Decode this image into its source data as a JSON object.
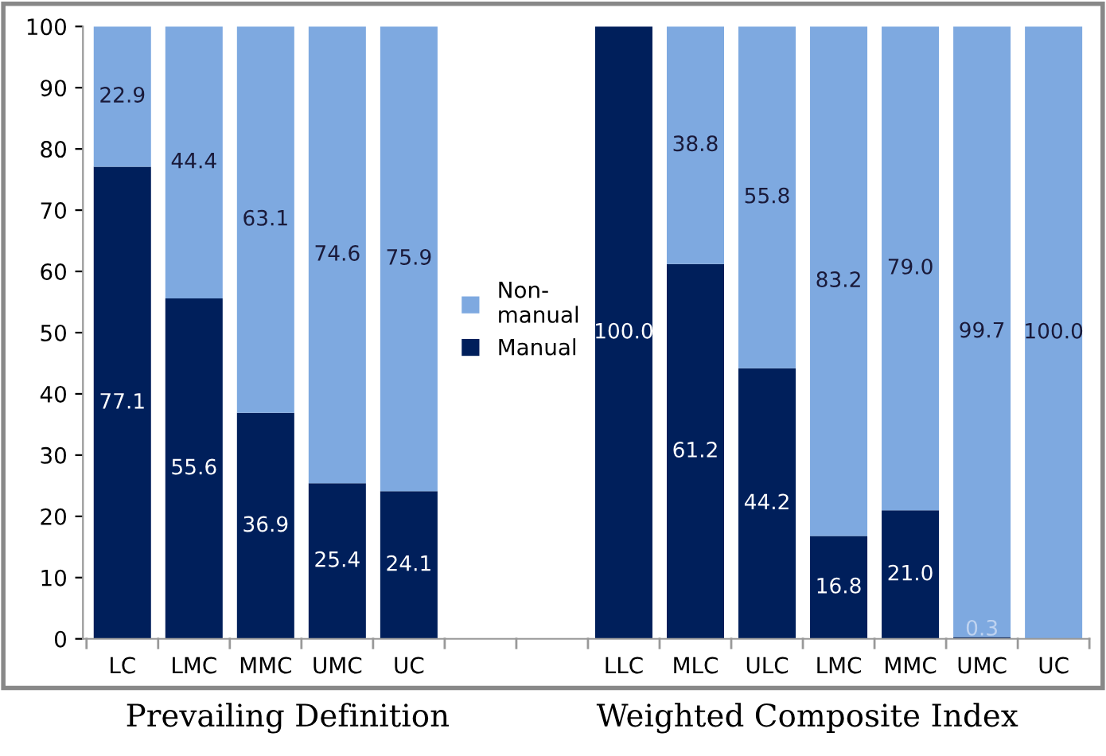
{
  "chart_data": {
    "type": "bar",
    "stacked": true,
    "categories": [
      "LC",
      "LMC",
      "MMC",
      "UMC",
      "UC",
      null,
      null,
      "LLC",
      "MLC",
      "ULC",
      "LMC",
      "MMC",
      "UMC",
      "UC"
    ],
    "series": [
      {
        "name": "Manual",
        "color": "#001f5b",
        "values": [
          77.1,
          55.6,
          36.9,
          25.4,
          24.1,
          null,
          null,
          100.0,
          61.2,
          44.2,
          16.8,
          21.0,
          0.3,
          0
        ],
        "value_labels": [
          "77.1",
          "55.6",
          "36.9",
          "25.4",
          "24.1",
          null,
          null,
          "100.0",
          "61.2",
          "44.2",
          "16.8",
          "21.0",
          "0.3",
          null
        ]
      },
      {
        "name": "Non-\nmanual",
        "color": "#7ea9e0",
        "values": [
          22.9,
          44.4,
          63.1,
          74.6,
          75.9,
          null,
          null,
          0,
          38.8,
          55.8,
          83.2,
          79.0,
          99.7,
          100.0
        ],
        "value_labels": [
          "22.9",
          "44.4",
          "63.1",
          "74.6",
          "75.9",
          null,
          null,
          null,
          "38.8",
          "55.8",
          "83.2",
          "79.0",
          "99.7",
          "100.0"
        ]
      }
    ],
    "ylim": [
      0,
      100
    ],
    "yticks": [
      0,
      10,
      20,
      30,
      40,
      50,
      60,
      70,
      80,
      90,
      100
    ],
    "grid": false,
    "legend": "center",
    "annotations": [
      "Prevailing Definition",
      "Weighted Composite Index"
    ]
  }
}
